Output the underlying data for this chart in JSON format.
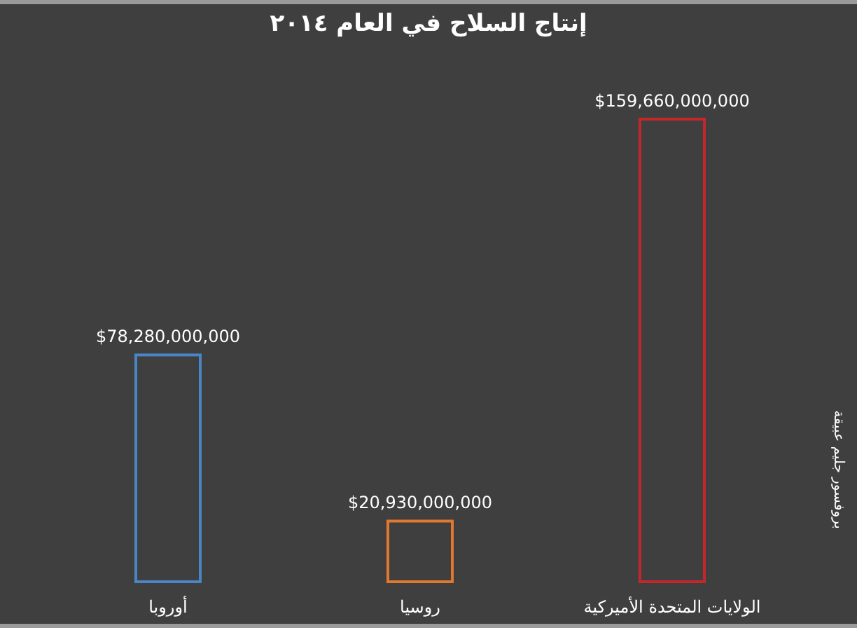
{
  "chart_data": {
    "type": "bar",
    "title": "إنتاج السلاح في العام ٢٠١٤",
    "categories": [
      "أوروبا",
      "روسيا",
      "الولايات المتحدة الأميركية"
    ],
    "values": [
      78280000000,
      20930000000,
      159660000000
    ],
    "value_labels": [
      "$78,280,000,000",
      "$20,930,000,000",
      "$159,660,000,000"
    ],
    "colors": [
      "#4a86c5",
      "#e0782f",
      "#c3262b"
    ],
    "annotations": [
      "بروفسور جليم عبيقة"
    ]
  }
}
